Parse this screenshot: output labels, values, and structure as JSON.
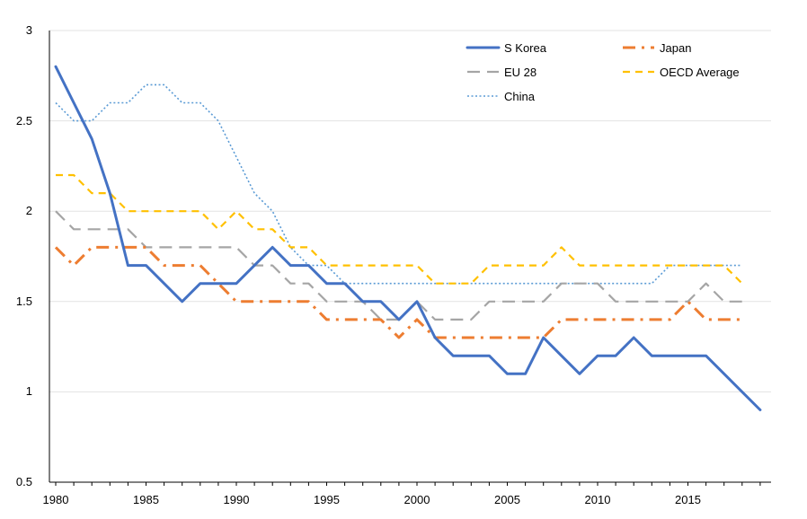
{
  "chart_data": {
    "type": "line",
    "title": "",
    "xlabel": "",
    "ylabel": "",
    "xlim": [
      1980,
      2019
    ],
    "ylim": [
      0.5,
      3
    ],
    "x_ticks": [
      1980,
      1985,
      1990,
      1995,
      2000,
      2005,
      2010,
      2015
    ],
    "y_ticks": [
      "0.5",
      "1",
      "1.5",
      "2",
      "2.5",
      "3"
    ],
    "grid": "horizontal",
    "legend_position": "top-right",
    "series": [
      {
        "name": "S Korea",
        "color": "#4472C4",
        "style": "solid",
        "x": [
          1980,
          1981,
          1982,
          1983,
          1984,
          1985,
          1986,
          1987,
          1988,
          1989,
          1990,
          1991,
          1992,
          1993,
          1994,
          1995,
          1996,
          1997,
          1998,
          1999,
          2000,
          2001,
          2002,
          2003,
          2004,
          2005,
          2006,
          2007,
          2008,
          2009,
          2010,
          2011,
          2012,
          2013,
          2014,
          2015,
          2016,
          2017,
          2018,
          2019
        ],
        "values": [
          2.8,
          2.6,
          2.4,
          2.1,
          1.7,
          1.7,
          1.6,
          1.5,
          1.6,
          1.6,
          1.6,
          1.7,
          1.8,
          1.7,
          1.7,
          1.6,
          1.6,
          1.5,
          1.5,
          1.4,
          1.5,
          1.3,
          1.2,
          1.2,
          1.2,
          1.1,
          1.1,
          1.3,
          1.2,
          1.1,
          1.2,
          1.2,
          1.3,
          1.2,
          1.2,
          1.2,
          1.2,
          1.1,
          1.0,
          0.9
        ]
      },
      {
        "name": "Japan",
        "color": "#ED7D31",
        "style": "dashdot",
        "x": [
          1980,
          1981,
          1982,
          1983,
          1984,
          1985,
          1986,
          1987,
          1988,
          1989,
          1990,
          1991,
          1992,
          1993,
          1994,
          1995,
          1996,
          1997,
          1998,
          1999,
          2000,
          2001,
          2002,
          2003,
          2004,
          2005,
          2006,
          2007,
          2008,
          2009,
          2010,
          2011,
          2012,
          2013,
          2014,
          2015,
          2016,
          2017,
          2018
        ],
        "values": [
          1.8,
          1.7,
          1.8,
          1.8,
          1.8,
          1.8,
          1.7,
          1.7,
          1.7,
          1.6,
          1.5,
          1.5,
          1.5,
          1.5,
          1.5,
          1.4,
          1.4,
          1.4,
          1.4,
          1.3,
          1.4,
          1.3,
          1.3,
          1.3,
          1.3,
          1.3,
          1.3,
          1.3,
          1.4,
          1.4,
          1.4,
          1.4,
          1.4,
          1.4,
          1.4,
          1.5,
          1.4,
          1.4,
          1.4
        ]
      },
      {
        "name": "EU 28",
        "color": "#A5A5A5",
        "style": "longdash",
        "x": [
          1980,
          1981,
          1982,
          1983,
          1984,
          1985,
          1986,
          1987,
          1988,
          1989,
          1990,
          1991,
          1992,
          1993,
          1994,
          1995,
          1996,
          1997,
          1998,
          1999,
          2000,
          2001,
          2002,
          2003,
          2004,
          2005,
          2006,
          2007,
          2008,
          2009,
          2010,
          2011,
          2012,
          2013,
          2014,
          2015,
          2016,
          2017,
          2018
        ],
        "values": [
          2.0,
          1.9,
          1.9,
          1.9,
          1.9,
          1.8,
          1.8,
          1.8,
          1.8,
          1.8,
          1.8,
          1.7,
          1.7,
          1.6,
          1.6,
          1.5,
          1.5,
          1.5,
          1.4,
          1.4,
          1.5,
          1.4,
          1.4,
          1.4,
          1.5,
          1.5,
          1.5,
          1.5,
          1.6,
          1.6,
          1.6,
          1.5,
          1.5,
          1.5,
          1.5,
          1.5,
          1.6,
          1.5,
          1.5
        ]
      },
      {
        "name": "OECD Average",
        "color": "#FFC000",
        "style": "dash",
        "x": [
          1980,
          1981,
          1982,
          1983,
          1984,
          1985,
          1986,
          1987,
          1988,
          1989,
          1990,
          1991,
          1992,
          1993,
          1994,
          1995,
          1996,
          1997,
          1998,
          1999,
          2000,
          2001,
          2002,
          2003,
          2004,
          2005,
          2006,
          2007,
          2008,
          2009,
          2010,
          2011,
          2012,
          2013,
          2014,
          2015,
          2016,
          2017,
          2018
        ],
        "values": [
          2.2,
          2.2,
          2.1,
          2.1,
          2.0,
          2.0,
          2.0,
          2.0,
          2.0,
          1.9,
          2.0,
          1.9,
          1.9,
          1.8,
          1.8,
          1.7,
          1.7,
          1.7,
          1.7,
          1.7,
          1.7,
          1.6,
          1.6,
          1.6,
          1.7,
          1.7,
          1.7,
          1.7,
          1.8,
          1.7,
          1.7,
          1.7,
          1.7,
          1.7,
          1.7,
          1.7,
          1.7,
          1.7,
          1.6
        ]
      },
      {
        "name": "China",
        "color": "#5B9BD5",
        "style": "dotted",
        "x": [
          1980,
          1981,
          1982,
          1983,
          1984,
          1985,
          1986,
          1987,
          1988,
          1989,
          1990,
          1991,
          1992,
          1993,
          1994,
          1995,
          1996,
          1997,
          1998,
          1999,
          2000,
          2001,
          2002,
          2003,
          2004,
          2005,
          2006,
          2007,
          2008,
          2009,
          2010,
          2011,
          2012,
          2013,
          2014,
          2015,
          2016,
          2017,
          2018
        ],
        "values": [
          2.6,
          2.5,
          2.5,
          2.6,
          2.6,
          2.7,
          2.7,
          2.6,
          2.6,
          2.5,
          2.3,
          2.1,
          2.0,
          1.8,
          1.7,
          1.7,
          1.6,
          1.6,
          1.6,
          1.6,
          1.6,
          1.6,
          1.6,
          1.6,
          1.6,
          1.6,
          1.6,
          1.6,
          1.6,
          1.6,
          1.6,
          1.6,
          1.6,
          1.6,
          1.7,
          1.7,
          1.7,
          1.7,
          1.7
        ]
      }
    ]
  }
}
